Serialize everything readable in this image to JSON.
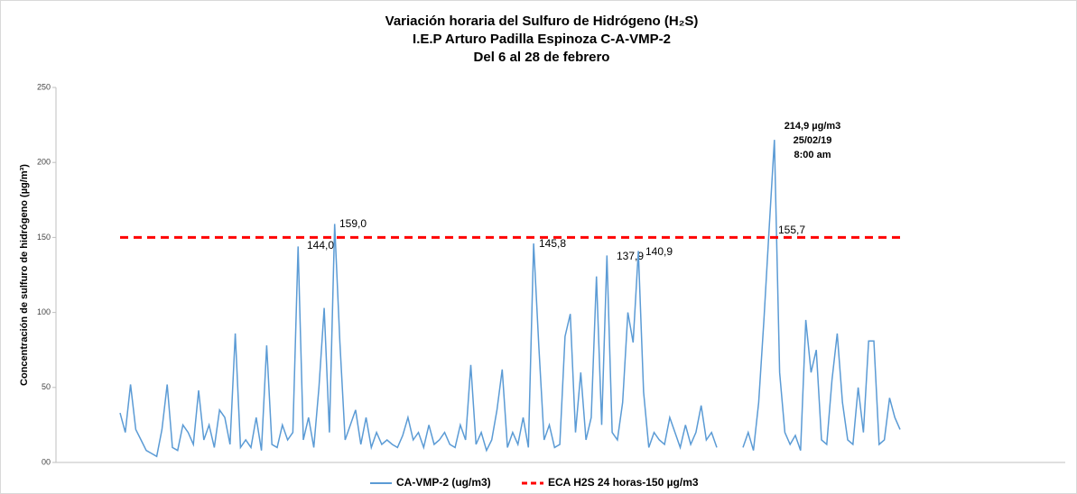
{
  "chart_data": {
    "type": "line",
    "title": "Variación horaria del Sulfuro de Hidrógeno (H₂S)",
    "subtitle": "I.E.P Arturo Padilla Espinoza C-A-VMP-2",
    "period": "Del 6 al 28 de febrero",
    "y_label": "Concentración de sulfuro de hidrógeno (µg/m³)",
    "categories": [
      null,
      null,
      null,
      null,
      null,
      null,
      null,
      null,
      null,
      null,
      null,
      null,
      null,
      null,
      null,
      null,
      null,
      null,
      null,
      null,
      null,
      null,
      null,
      null,
      null,
      null,
      null,
      null,
      null,
      null,
      null,
      null,
      null,
      null,
      null,
      null,
      null,
      null,
      null,
      null,
      null,
      null,
      null,
      null,
      null,
      null,
      null,
      null,
      null,
      null,
      null,
      null,
      null,
      null,
      null,
      null,
      null,
      null,
      null,
      null,
      null,
      null,
      null,
      null,
      null,
      null,
      null,
      null,
      null,
      null,
      null,
      null,
      null,
      null,
      null,
      null,
      null,
      null,
      null,
      null,
      null,
      null,
      null,
      null,
      null,
      null,
      null,
      null,
      null,
      null,
      null,
      null,
      null,
      null,
      null,
      null,
      null,
      null,
      null,
      null,
      null,
      null,
      null,
      null,
      null,
      null,
      null,
      null,
      null,
      null,
      null,
      null,
      null,
      null,
      null,
      null,
      null,
      null,
      null,
      null,
      null,
      null,
      null,
      null,
      null,
      null,
      null,
      null,
      null,
      null,
      null,
      null,
      null,
      null,
      null,
      null,
      null,
      null,
      null,
      null,
      null,
      null,
      null,
      null,
      null,
      null,
      null,
      null,
      null,
      null
    ],
    "series": [
      {
        "name": "CA-VMP-2 (ug/m3)",
        "color": "#5b9bd5",
        "values": [
          33,
          20,
          52,
          22,
          15,
          8,
          6,
          4,
          22,
          52,
          10,
          8,
          25,
          20,
          12,
          48,
          15,
          25,
          10,
          35,
          30,
          12,
          86,
          10,
          15,
          10,
          30,
          8,
          78,
          12,
          10,
          25,
          15,
          20,
          144,
          15,
          30,
          10,
          50,
          103,
          20,
          159,
          80,
          15,
          25,
          35,
          12,
          30,
          10,
          20,
          12,
          15,
          12,
          10,
          18,
          30,
          15,
          20,
          10,
          25,
          12,
          15,
          20,
          12,
          10,
          25,
          15,
          65,
          12,
          20,
          8,
          15,
          35,
          62,
          10,
          20,
          12,
          30,
          10,
          146,
          77,
          15,
          25,
          10,
          12,
          84,
          99,
          20,
          60,
          15,
          30,
          124,
          25,
          138,
          20,
          15,
          40,
          100,
          80,
          141,
          47,
          10,
          20,
          15,
          12,
          30,
          20,
          10,
          25,
          12,
          20,
          38,
          15,
          20,
          10,
          null,
          null,
          null,
          null,
          10,
          20,
          8,
          40,
          95,
          156,
          215,
          60,
          20,
          12,
          18,
          8,
          95,
          60,
          75,
          15,
          12,
          55,
          86,
          40,
          15,
          12,
          50,
          20,
          81,
          81,
          12,
          15,
          43,
          30,
          22
        ]
      }
    ],
    "reference_line": {
      "name": "ECA H2S 24 horas-150 µg/m3",
      "color": "#ff0000",
      "value": 150
    },
    "annotations": [
      "144,0",
      "159,0",
      "145,8",
      "137,9",
      "140,9",
      "155,7",
      "214,9 µg/m3",
      "25/02/19",
      "8:00 am"
    ],
    "ylim": [
      0,
      250
    ],
    "yticks": [
      {
        "value": 0,
        "label": "00"
      },
      50,
      100,
      150,
      200,
      250
    ],
    "grid": false
  }
}
